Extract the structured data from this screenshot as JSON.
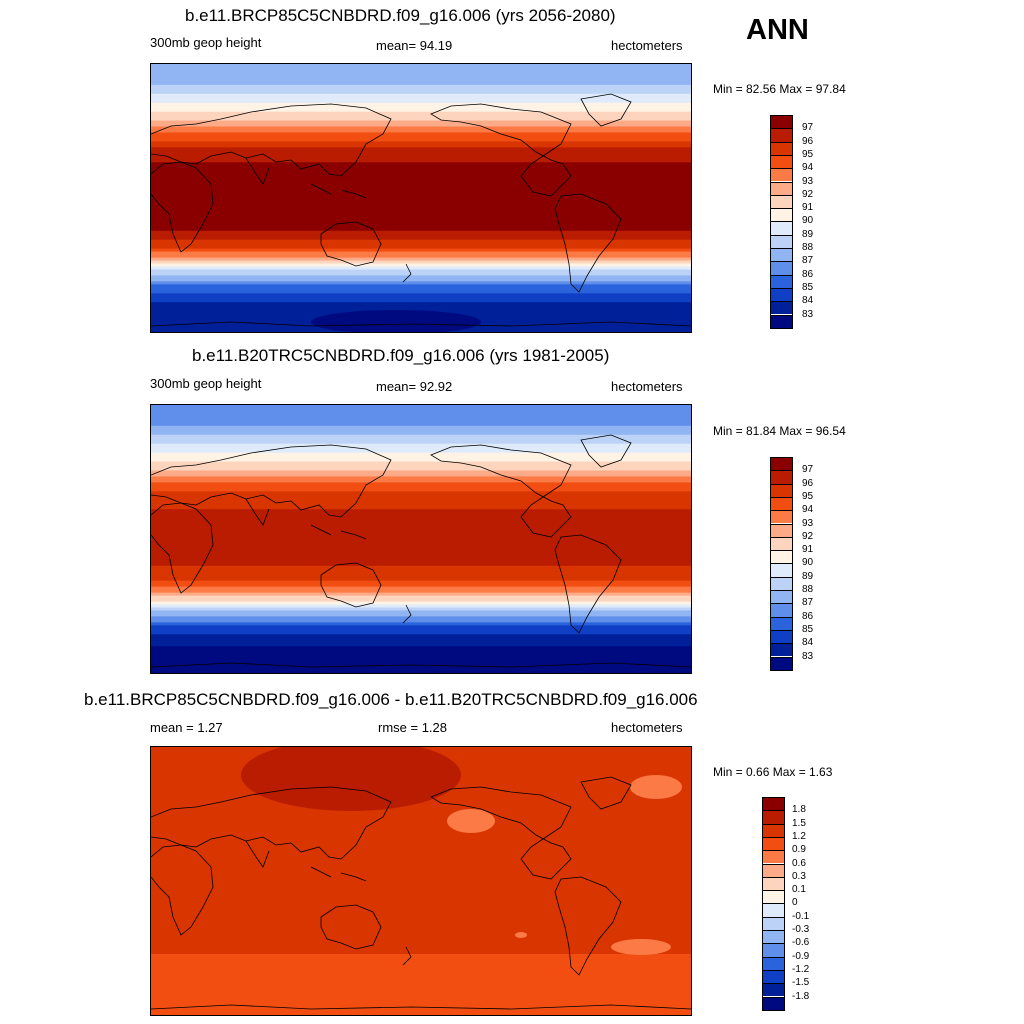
{
  "season": "ANN",
  "panels": [
    {
      "title": "b.e11.BRCP85C5CNBDRD.f09_g16.006 (yrs 2056-2080)",
      "left_label": "300mb geop height",
      "center_label": "mean=  94.19",
      "right_label": "hectometers",
      "minmax": "Min =  82.56 Max =  97.84"
    },
    {
      "title": "b.e11.B20TRC5CNBDRD.f09_g16.006 (yrs 1981-2005)",
      "left_label": "300mb geop height",
      "center_label": "mean=  92.92",
      "right_label": "hectometers",
      "minmax": "Min =  81.84 Max =  96.54"
    },
    {
      "title": "b.e11.BRCP85C5CNBDRD.f09_g16.006 - b.e11.B20TRC5CNBDRD.f09_g16.006",
      "left_label": "mean =   1.27",
      "center_label": "rmse =   1.28",
      "right_label": "hectometers",
      "minmax": "Min =   0.66 Max =   1.63"
    }
  ],
  "chart_data": [
    {
      "type": "heatmap",
      "title": "b.e11.BRCP85C5CNBDRD.f09_g16.006 (yrs 2056-2080)",
      "variable": "300mb geop height",
      "units": "hectometers",
      "mean": 94.19,
      "min": 82.56,
      "max": 97.84,
      "legend_levels": [
        97,
        96,
        95,
        94,
        93,
        92,
        91,
        90,
        89,
        88,
        87,
        86,
        85,
        84,
        83
      ],
      "legend_colors": [
        "#8a0000",
        "#b91c00",
        "#d83500",
        "#f24e12",
        "#fb7a45",
        "#fcaa88",
        "#fdd4bd",
        "#fff3e6",
        "#dfeafa",
        "#bcd3f7",
        "#90b5f2",
        "#5f8fea",
        "#2b63dc",
        "#0f3fc4",
        "#00209a",
        "#000a80"
      ],
      "lat_profile": [
        {
          "lat": 90,
          "value": 87.2
        },
        {
          "lat": 75,
          "value": 88.0
        },
        {
          "lat": 60,
          "value": 90.6
        },
        {
          "lat": 48,
          "value": 92.8
        },
        {
          "lat": 38,
          "value": 95.2
        },
        {
          "lat": 28,
          "value": 96.8
        },
        {
          "lat": 15,
          "value": 97.4
        },
        {
          "lat": 0,
          "value": 97.5
        },
        {
          "lat": -15,
          "value": 97.4
        },
        {
          "lat": -25,
          "value": 96.8
        },
        {
          "lat": -33,
          "value": 95.0
        },
        {
          "lat": -42,
          "value": 92.0
        },
        {
          "lat": -50,
          "value": 88.5
        },
        {
          "lat": -60,
          "value": 85.5
        },
        {
          "lat": -70,
          "value": 84.0
        },
        {
          "lat": -80,
          "value": 83.3
        },
        {
          "lat": -90,
          "value": 83.0
        }
      ]
    },
    {
      "type": "heatmap",
      "title": "b.e11.B20TRC5CNBDRD.f09_g16.006 (yrs 1981-2005)",
      "variable": "300mb geop height",
      "units": "hectometers",
      "mean": 92.92,
      "min": 81.84,
      "max": 96.54,
      "legend_levels": [
        97,
        96,
        95,
        94,
        93,
        92,
        91,
        90,
        89,
        88,
        87,
        86,
        85,
        84,
        83
      ],
      "legend_colors": [
        "#8a0000",
        "#b91c00",
        "#d83500",
        "#f24e12",
        "#fb7a45",
        "#fcaa88",
        "#fdd4bd",
        "#fff3e6",
        "#dfeafa",
        "#bcd3f7",
        "#90b5f2",
        "#5f8fea",
        "#2b63dc",
        "#0f3fc4",
        "#00209a",
        "#000a80"
      ],
      "lat_profile": [
        {
          "lat": 90,
          "value": 86.0
        },
        {
          "lat": 75,
          "value": 87.0
        },
        {
          "lat": 60,
          "value": 89.6
        },
        {
          "lat": 48,
          "value": 91.6
        },
        {
          "lat": 38,
          "value": 94.0
        },
        {
          "lat": 28,
          "value": 95.6
        },
        {
          "lat": 15,
          "value": 96.2
        },
        {
          "lat": 0,
          "value": 96.3
        },
        {
          "lat": -15,
          "value": 96.2
        },
        {
          "lat": -25,
          "value": 95.6
        },
        {
          "lat": -33,
          "value": 93.8
        },
        {
          "lat": -42,
          "value": 90.8
        },
        {
          "lat": -50,
          "value": 87.5
        },
        {
          "lat": -60,
          "value": 84.6
        },
        {
          "lat": -70,
          "value": 83.2
        },
        {
          "lat": -80,
          "value": 82.4
        },
        {
          "lat": -90,
          "value": 82.0
        }
      ]
    },
    {
      "type": "heatmap",
      "title": "b.e11.BRCP85C5CNBDRD.f09_g16.006 - b.e11.B20TRC5CNBDRD.f09_g16.006",
      "units": "hectometers",
      "mean": 1.27,
      "rmse": 1.28,
      "min": 0.66,
      "max": 1.63,
      "legend_levels": [
        "1.8",
        "1.5",
        "1.2",
        "0.9",
        "0.6",
        "0.3",
        "0.1",
        "0",
        "-0.1",
        "-0.3",
        "-0.6",
        "-0.9",
        "-1.2",
        "-1.5",
        "-1.8"
      ],
      "legend_colors": [
        "#8a0000",
        "#b91c00",
        "#d83500",
        "#f24e12",
        "#fb7a45",
        "#fcaa88",
        "#fdd4bd",
        "#fff3e6",
        "#dfeafa",
        "#bcd3f7",
        "#90b5f2",
        "#5f8fea",
        "#2b63dc",
        "#0f3fc4",
        "#00209a",
        "#000a80"
      ],
      "lat_profile": [
        {
          "lat": 90,
          "value": 1.3
        },
        {
          "lat": 45,
          "value": 1.25
        },
        {
          "lat": 0,
          "value": 1.3
        },
        {
          "lat": -40,
          "value": 1.3
        },
        {
          "lat": -55,
          "value": 1.1
        },
        {
          "lat": -90,
          "value": 0.95
        }
      ]
    }
  ]
}
